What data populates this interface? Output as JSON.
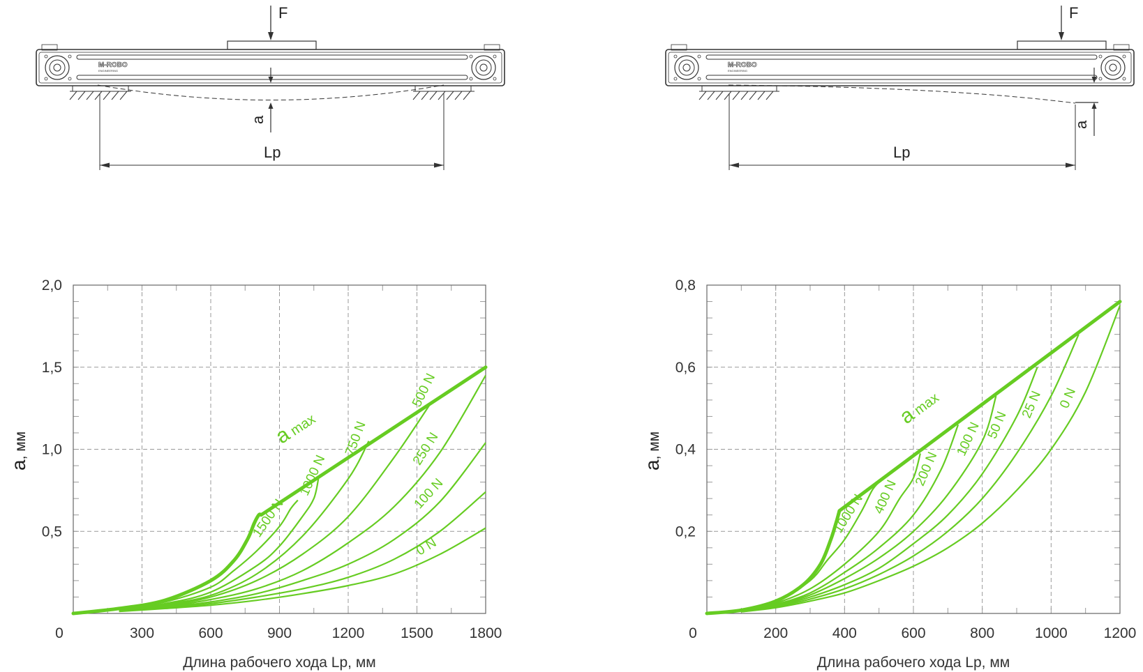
{
  "diagrams": [
    {
      "force_label": "F",
      "deflection_label": "a",
      "length_label": "Lp",
      "logo": "M-ROBO",
      "logo_sub": "ENGINEERING"
    },
    {
      "force_label": "F",
      "deflection_label": "a",
      "length_label": "Lp",
      "logo": "M-ROBO",
      "logo_sub": "ENGINEERING"
    }
  ],
  "colors": {
    "curve": "#66cc22",
    "grid": "#999999",
    "axis": "#666666",
    "drawing": "#333333"
  },
  "chart_data": [
    {
      "type": "line",
      "xlabel": "Длина рабочего хода Lp, мм",
      "ylabel_main": "a",
      "ylabel_unit": ", мм",
      "xlim": [
        0,
        1800
      ],
      "ylim": [
        0,
        2.0
      ],
      "x_ticks": [
        0,
        300,
        600,
        900,
        1200,
        1500,
        1800
      ],
      "x_tick_labels": [
        "0",
        "300",
        "600",
        "900",
        "1200",
        "1500",
        "1800"
      ],
      "y_ticks": [
        0.5,
        1.0,
        1.5,
        2.0
      ],
      "y_tick_labels": [
        "0,5",
        "1,0",
        "1,5",
        "2,0"
      ],
      "envelope": {
        "label": "a",
        "label_sub": "max",
        "points": [
          [
            0,
            0
          ],
          [
            200,
            0.03
          ],
          [
            400,
            0.08
          ],
          [
            600,
            0.2
          ],
          [
            700,
            0.32
          ],
          [
            760,
            0.45
          ],
          [
            790,
            0.55
          ],
          [
            810,
            0.6
          ],
          [
            820,
            0.6
          ],
          [
            1800,
            1.5
          ]
        ]
      },
      "series": [
        {
          "name": "1500 N",
          "points": [
            [
              200,
              0.028
            ],
            [
              400,
              0.07
            ],
            [
              600,
              0.16
            ],
            [
              700,
              0.26
            ],
            [
              800,
              0.38
            ],
            [
              900,
              0.53
            ],
            [
              950,
              0.64
            ],
            [
              980,
              0.69
            ]
          ]
        },
        {
          "name": "1000 N",
          "points": [
            [
              200,
              0.025
            ],
            [
              400,
              0.06
            ],
            [
              600,
              0.13
            ],
            [
              800,
              0.29
            ],
            [
              900,
              0.41
            ],
            [
              1000,
              0.59
            ],
            [
              1050,
              0.7
            ],
            [
              1070,
              0.82
            ]
          ]
        },
        {
          "name": "750 N",
          "points": [
            [
              200,
              0.022
            ],
            [
              400,
              0.055
            ],
            [
              600,
              0.11
            ],
            [
              800,
              0.24
            ],
            [
              1000,
              0.47
            ],
            [
              1200,
              0.82
            ],
            [
              1290,
              1.05
            ]
          ]
        },
        {
          "name": "500 N",
          "points": [
            [
              200,
              0.02
            ],
            [
              400,
              0.048
            ],
            [
              600,
              0.1
            ],
            [
              800,
              0.2
            ],
            [
              1000,
              0.36
            ],
            [
              1200,
              0.59
            ],
            [
              1400,
              0.95
            ],
            [
              1560,
              1.28
            ]
          ]
        },
        {
          "name": "250 N",
          "points": [
            [
              200,
              0.018
            ],
            [
              400,
              0.042
            ],
            [
              600,
              0.085
            ],
            [
              800,
              0.15
            ],
            [
              1000,
              0.26
            ],
            [
              1200,
              0.43
            ],
            [
              1400,
              0.65
            ],
            [
              1600,
              0.98
            ],
            [
              1800,
              1.45
            ]
          ]
        },
        {
          "name": "100 N",
          "points": [
            [
              200,
              0.016
            ],
            [
              400,
              0.038
            ],
            [
              600,
              0.07
            ],
            [
              800,
              0.12
            ],
            [
              1000,
              0.2
            ],
            [
              1200,
              0.3
            ],
            [
              1400,
              0.45
            ],
            [
              1600,
              0.68
            ],
            [
              1800,
              1.04
            ]
          ]
        },
        {
          "name": "",
          "points": [
            [
              200,
              0.014
            ],
            [
              400,
              0.034
            ],
            [
              600,
              0.06
            ],
            [
              800,
              0.1
            ],
            [
              1000,
              0.15
            ],
            [
              1200,
              0.22
            ],
            [
              1400,
              0.33
            ],
            [
              1600,
              0.5
            ],
            [
              1800,
              0.74
            ]
          ]
        },
        {
          "name": "0 N",
          "points": [
            [
              200,
              0.012
            ],
            [
              400,
              0.03
            ],
            [
              600,
              0.05
            ],
            [
              800,
              0.08
            ],
            [
              1000,
              0.12
            ],
            [
              1200,
              0.17
            ],
            [
              1400,
              0.24
            ],
            [
              1600,
              0.36
            ],
            [
              1800,
              0.52
            ]
          ]
        }
      ]
    },
    {
      "type": "line",
      "xlabel": "Длина рабочего хода Lp, мм",
      "ylabel_main": "a",
      "ylabel_unit": ", мм",
      "xlim": [
        0,
        1200
      ],
      "ylim": [
        0,
        0.8
      ],
      "x_ticks": [
        0,
        200,
        400,
        600,
        800,
        1000,
        1200
      ],
      "x_tick_labels": [
        "0",
        "200",
        "400",
        "600",
        "800",
        "1000",
        "1200"
      ],
      "y_ticks": [
        0.2,
        0.4,
        0.6,
        0.8
      ],
      "y_tick_labels": [
        "0,2",
        "0,4",
        "0,6",
        "0,8"
      ],
      "envelope": {
        "label": "a",
        "label_sub": "max",
        "points": [
          [
            0,
            0
          ],
          [
            100,
            0.008
          ],
          [
            200,
            0.03
          ],
          [
            280,
            0.07
          ],
          [
            330,
            0.12
          ],
          [
            360,
            0.18
          ],
          [
            375,
            0.22
          ],
          [
            385,
            0.25
          ],
          [
            1200,
            0.76
          ]
        ]
      },
      "series": [
        {
          "name": "1000 N",
          "points": [
            [
              100,
              0.007
            ],
            [
              200,
              0.028
            ],
            [
              300,
              0.08
            ],
            [
              350,
              0.13
            ],
            [
              400,
              0.18
            ],
            [
              450,
              0.25
            ],
            [
              480,
              0.3
            ],
            [
              500,
              0.32
            ]
          ]
        },
        {
          "name": "400 N",
          "points": [
            [
              100,
              0.007
            ],
            [
              200,
              0.025
            ],
            [
              300,
              0.06
            ],
            [
              400,
              0.12
            ],
            [
              500,
              0.2
            ],
            [
              560,
              0.28
            ],
            [
              600,
              0.33
            ],
            [
              620,
              0.39
            ]
          ]
        },
        {
          "name": "200 N",
          "points": [
            [
              100,
              0.006
            ],
            [
              200,
              0.022
            ],
            [
              300,
              0.05
            ],
            [
              400,
              0.1
            ],
            [
              500,
              0.16
            ],
            [
              600,
              0.24
            ],
            [
              680,
              0.35
            ],
            [
              730,
              0.46
            ]
          ]
        },
        {
          "name": "100 N",
          "points": [
            [
              100,
              0.005
            ],
            [
              200,
              0.02
            ],
            [
              300,
              0.045
            ],
            [
              400,
              0.085
            ],
            [
              500,
              0.135
            ],
            [
              600,
              0.2
            ],
            [
              700,
              0.29
            ],
            [
              800,
              0.42
            ],
            [
              840,
              0.53
            ]
          ]
        },
        {
          "name": "50 N",
          "points": [
            [
              100,
              0.005
            ],
            [
              200,
              0.018
            ],
            [
              300,
              0.04
            ],
            [
              400,
              0.07
            ],
            [
              500,
              0.11
            ],
            [
              600,
              0.17
            ],
            [
              700,
              0.24
            ],
            [
              800,
              0.34
            ],
            [
              900,
              0.48
            ],
            [
              960,
              0.6
            ]
          ]
        },
        {
          "name": "25 N",
          "points": [
            [
              100,
              0.004
            ],
            [
              200,
              0.016
            ],
            [
              300,
              0.035
            ],
            [
              400,
              0.06
            ],
            [
              500,
              0.095
            ],
            [
              600,
              0.14
            ],
            [
              700,
              0.2
            ],
            [
              800,
              0.28
            ],
            [
              900,
              0.39
            ],
            [
              1000,
              0.53
            ],
            [
              1080,
              0.68
            ]
          ]
        },
        {
          "name": "0 N",
          "points": [
            [
              100,
              0.004
            ],
            [
              200,
              0.014
            ],
            [
              300,
              0.03
            ],
            [
              400,
              0.05
            ],
            [
              500,
              0.08
            ],
            [
              600,
              0.115
            ],
            [
              700,
              0.16
            ],
            [
              800,
              0.22
            ],
            [
              900,
              0.3
            ],
            [
              1000,
              0.4
            ],
            [
              1100,
              0.54
            ],
            [
              1200,
              0.75
            ]
          ]
        }
      ]
    }
  ]
}
